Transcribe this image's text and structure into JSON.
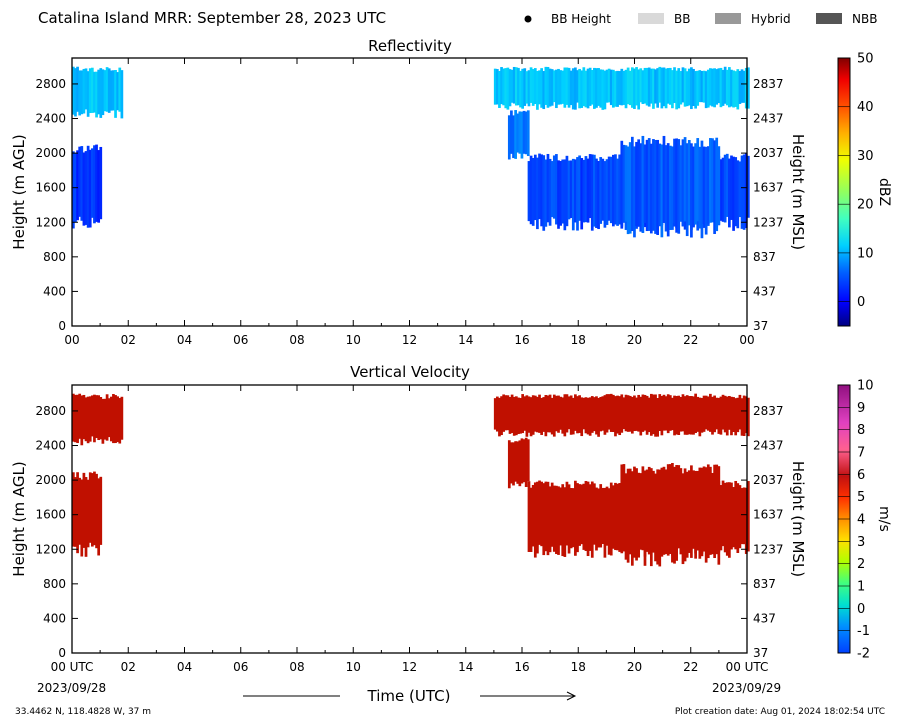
{
  "header": {
    "title": "Catalina Island MRR:  September 28, 2023 UTC",
    "legend": [
      {
        "label": "BB Height",
        "swatch": "dot",
        "color": "#000000"
      },
      {
        "label": "BB",
        "swatch": "box",
        "color": "#d9d9d9"
      },
      {
        "label": "Hybrid",
        "swatch": "box",
        "color": "#999999"
      },
      {
        "label": "NBB",
        "swatch": "box",
        "color": "#555555"
      }
    ]
  },
  "footer": {
    "location": "33.4462 N, 118.4828 W, 37 m",
    "created": "Plot creation date: Aug 01, 2024 18:02:54 UTC",
    "date_start": "2023/09/28",
    "date_end": "2023/09/29",
    "time_label": "Time (UTC)"
  },
  "chart_data": [
    {
      "type": "heatmap",
      "title": "Reflectivity",
      "ylabel": "Height (m AGL)",
      "ylabel_right": "Height (m MSL)",
      "colorbar_label": "dBZ",
      "x_ticks": [
        "00",
        "02",
        "04",
        "06",
        "08",
        "10",
        "12",
        "14",
        "16",
        "18",
        "20",
        "22",
        "00"
      ],
      "y_ticks": [
        0,
        400,
        800,
        1200,
        1600,
        2000,
        2400,
        2800
      ],
      "y_ticks_right": [
        "37",
        "437",
        "837",
        "1237",
        "1637",
        "2037",
        "2437",
        "2837"
      ],
      "xlim": [
        0,
        24
      ],
      "ylim": [
        0,
        3100
      ],
      "colorbar": {
        "min": -5,
        "max": 50,
        "ticks": [
          0,
          10,
          20,
          30,
          40,
          50
        ]
      },
      "echo_regions": [
        {
          "x0": 0.0,
          "x1": 1.75,
          "y0": 2400,
          "y1": 3000,
          "value_dbz": 8
        },
        {
          "x0": 0.0,
          "x1": 1.0,
          "y0": 1100,
          "y1": 2100,
          "value_dbz": 2
        },
        {
          "x0": 15.0,
          "x1": 24.0,
          "y0": 2500,
          "y1": 3000,
          "value_dbz": 8
        },
        {
          "x0": 15.5,
          "x1": 16.2,
          "y0": 1900,
          "y1": 2500,
          "value_dbz": 4
        },
        {
          "x0": 16.2,
          "x1": 24.0,
          "y0": 1100,
          "y1": 2000,
          "value_dbz": 3
        },
        {
          "x0": 19.5,
          "x1": 23.0,
          "y0": 1000,
          "y1": 2200,
          "value_dbz": 4
        }
      ]
    },
    {
      "type": "heatmap",
      "title": "Vertical Velocity",
      "ylabel": "Height (m AGL)",
      "ylabel_right": "Height (m MSL)",
      "colorbar_label": "m/s",
      "x_ticks": [
        "00 UTC",
        "02",
        "04",
        "06",
        "08",
        "10",
        "12",
        "14",
        "16",
        "18",
        "20",
        "22",
        "00 UTC"
      ],
      "y_ticks": [
        0,
        400,
        800,
        1200,
        1600,
        2000,
        2400,
        2800
      ],
      "y_ticks_right": [
        "37",
        "437",
        "837",
        "1237",
        "1637",
        "2037",
        "2437",
        "2837"
      ],
      "xlim": [
        0,
        24
      ],
      "ylim": [
        0,
        3100
      ],
      "colorbar": {
        "min": -2,
        "max": 10,
        "ticks": [
          -2,
          -1,
          0,
          1,
          2,
          3,
          4,
          5,
          6,
          7,
          8,
          9,
          10
        ]
      },
      "echo_regions": [
        {
          "x0": 0.0,
          "x1": 1.75,
          "y0": 2400,
          "y1": 3000,
          "value_ms": 5.9
        },
        {
          "x0": 0.0,
          "x1": 1.0,
          "y0": 1100,
          "y1": 2100,
          "value_ms": 5.9
        },
        {
          "x0": 15.0,
          "x1": 24.0,
          "y0": 2500,
          "y1": 3000,
          "value_ms": 5.9
        },
        {
          "x0": 15.5,
          "x1": 16.2,
          "y0": 1900,
          "y1": 2500,
          "value_ms": 5.9
        },
        {
          "x0": 16.2,
          "x1": 24.0,
          "y0": 1100,
          "y1": 2000,
          "value_ms": 5.9
        },
        {
          "x0": 19.5,
          "x1": 23.0,
          "y0": 1000,
          "y1": 2200,
          "value_ms": 5.9
        }
      ]
    }
  ]
}
